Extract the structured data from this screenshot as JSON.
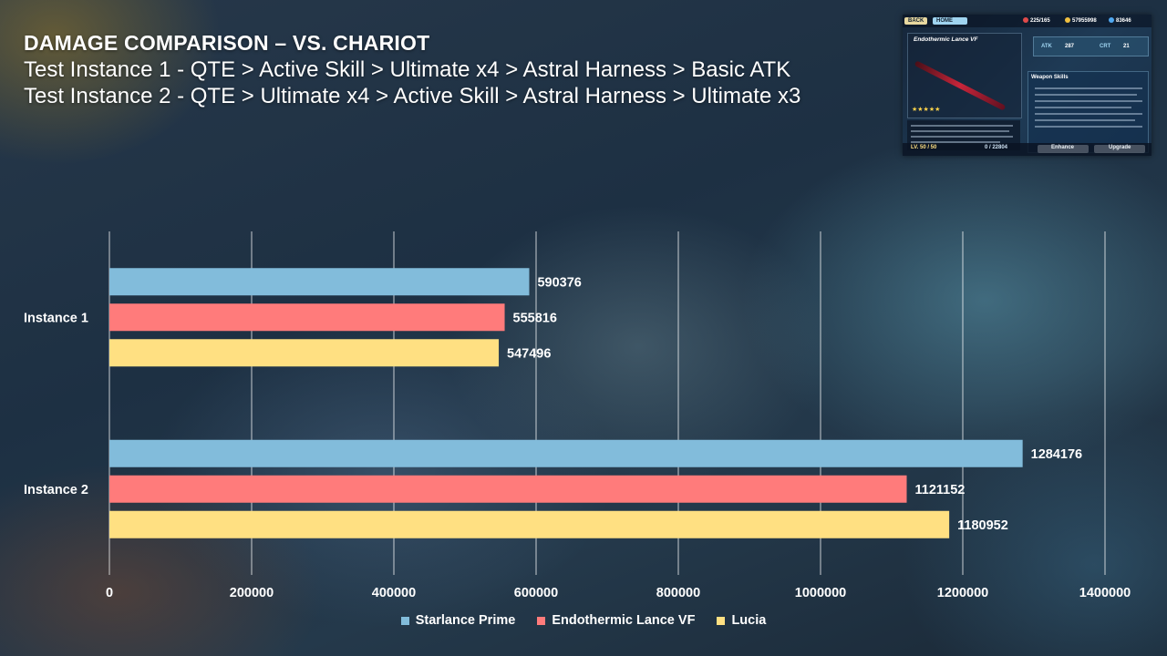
{
  "header": {
    "title": "DAMAGE COMPARISON – VS. CHARIOT",
    "subtitle_1": "Test Instance 1 - QTE > Active Skill > Ultimate x4 > Astral Harness > Basic ATK",
    "subtitle_2": "Test Instance 2 - QTE > Ultimate x4 > Active Skill > Astral Harness > Ultimate x3"
  },
  "screenshot": {
    "back_label": "BACK",
    "home_label": "HOME",
    "resources": [
      "225/165",
      "57955998",
      "83646"
    ],
    "weapon_name": "Endothermic Lance VF",
    "atk_label": "ATK",
    "atk_value": "287",
    "crt_label": "CRT",
    "crt_value": "21",
    "skills_label": "Weapon Skills",
    "level_text": "LV. 50 / 50",
    "exp_text": "0 / 22804",
    "enhance_label": "Enhance",
    "upgrade_label": "Upgrade"
  },
  "chart_data": {
    "type": "bar",
    "orientation": "horizontal",
    "categories": [
      "Instance 1",
      "Instance 2"
    ],
    "series": [
      {
        "name": "Starlance Prime",
        "values": [
          590376,
          1284176
        ],
        "color": "#82bcdb"
      },
      {
        "name": "Endothermic Lance VF",
        "values": [
          555816,
          1121152
        ],
        "color": "#ff7b7b"
      },
      {
        "name": "Lucia",
        "values": [
          547496,
          1180952
        ],
        "color": "#ffe082"
      }
    ],
    "xlim": [
      0,
      1400000
    ],
    "xticks": [
      0,
      200000,
      400000,
      600000,
      800000,
      1000000,
      1200000,
      1400000
    ],
    "grid": true,
    "data_labels": true,
    "legend_position": "bottom"
  }
}
